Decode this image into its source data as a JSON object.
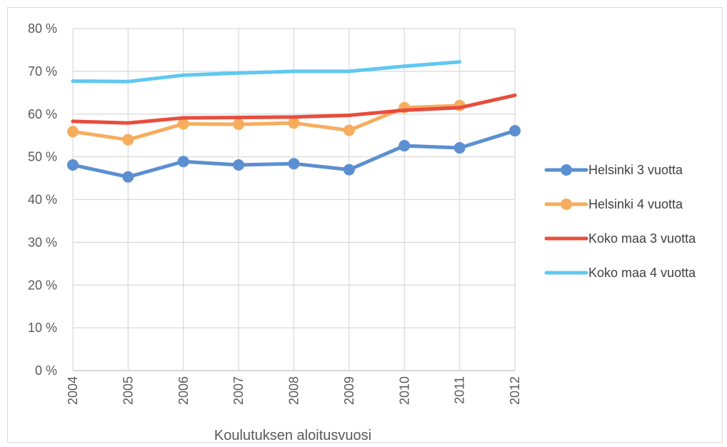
{
  "chart_data": {
    "type": "line",
    "title": "",
    "xlabel": "Koulutuksen aloitusvuosi",
    "ylabel": "",
    "ylim": [
      0,
      80
    ],
    "y_ticks": [
      "0 %",
      "10 %",
      "20 %",
      "30 %",
      "40 %",
      "50 %",
      "60 %",
      "70 %",
      "80 %"
    ],
    "categories": [
      "2004",
      "2005",
      "2006",
      "2007",
      "2008",
      "2009",
      "2010",
      "2011",
      "2012"
    ],
    "grid": "both",
    "legend_position": "right",
    "series": [
      {
        "name": "Helsinki 3 vuotta",
        "color": "#5b8fd1",
        "markers": true,
        "values": [
          48.1,
          45.3,
          48.9,
          48.1,
          48.4,
          47.0,
          52.6,
          52.1,
          56.1
        ]
      },
      {
        "name": "Helsinki 4 vuotta",
        "color": "#f6ad5e",
        "markers": true,
        "values": [
          55.9,
          54.0,
          57.7,
          57.6,
          57.9,
          56.2,
          61.5,
          62.0,
          null
        ]
      },
      {
        "name": "Koko maa 3 vuotta",
        "color": "#e84d3d",
        "markers": false,
        "values": [
          58.3,
          57.9,
          59.1,
          59.2,
          59.3,
          59.7,
          60.9,
          61.5,
          64.4
        ]
      },
      {
        "name": "Koko maa 4 vuotta",
        "color": "#5fc8f0",
        "markers": false,
        "values": [
          67.7,
          67.6,
          69.1,
          69.6,
          70.0,
          70.0,
          71.2,
          72.2,
          null
        ]
      }
    ]
  }
}
